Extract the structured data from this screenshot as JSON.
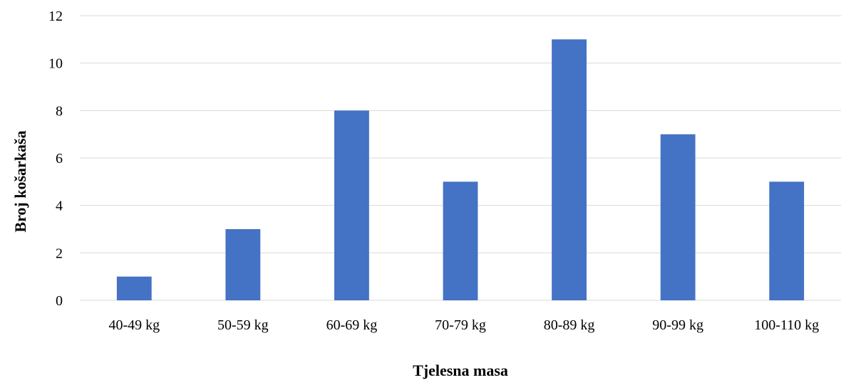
{
  "chart_data": {
    "type": "bar",
    "title": "",
    "xlabel": "Tjelesna masa",
    "ylabel": "Broj košarkaša",
    "categories": [
      "40-49 kg",
      "50-59 kg",
      "60-69 kg",
      "70-79 kg",
      "80-89 kg",
      "90-99 kg",
      "100-110 kg"
    ],
    "values": [
      1,
      3,
      8,
      5,
      11,
      7,
      5
    ],
    "ylim": [
      0,
      12
    ],
    "yticks": [
      0,
      2,
      4,
      6,
      8,
      10,
      12
    ],
    "grid": true,
    "legend": "none",
    "bar_color": "#4472c4"
  }
}
